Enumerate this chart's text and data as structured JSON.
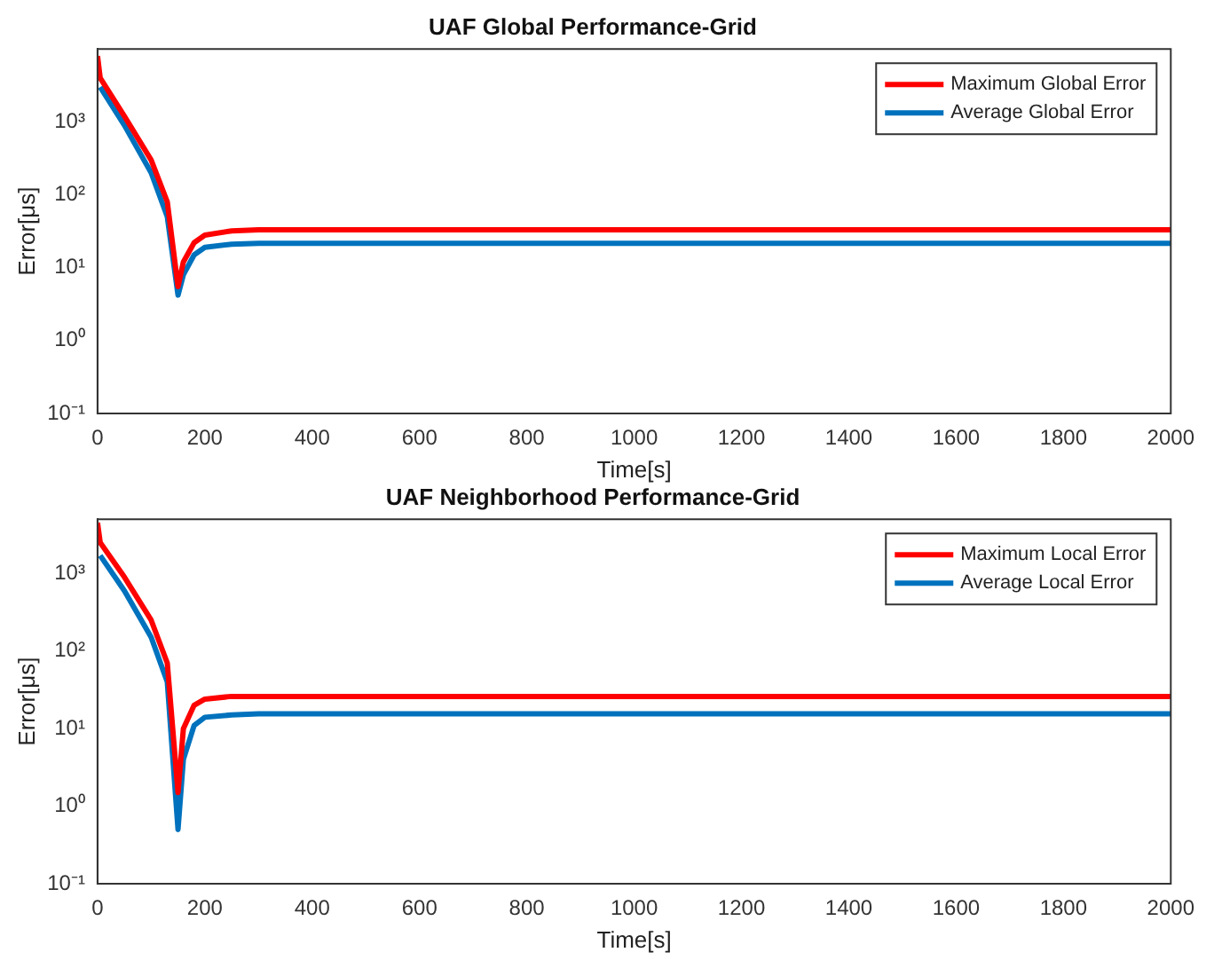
{
  "chart_data": [
    {
      "type": "line",
      "title": "UAF Global Performance-Grid",
      "xlabel": "Time[s]",
      "ylabel": "Error[μs]",
      "log": "y",
      "grid": false,
      "legend": "top right",
      "marker": "none",
      "line_style": "solid",
      "xlim": [
        0,
        2000
      ],
      "xticks": [
        0,
        200,
        400,
        600,
        800,
        1000,
        1200,
        1400,
        1600,
        1800,
        2000
      ],
      "ylim": [
        0.1,
        10000
      ],
      "yticks": [
        {
          "value": 0.1,
          "label": "10⁻¹"
        },
        {
          "value": 1,
          "label": "10⁰"
        },
        {
          "value": 10,
          "label": "10¹"
        },
        {
          "value": 100,
          "label": "10²"
        },
        {
          "value": 1000,
          "label": "10³"
        }
      ],
      "x": [
        0,
        5,
        50,
        100,
        130,
        150,
        160,
        180,
        200,
        250,
        300,
        2000
      ],
      "series": [
        {
          "name": "Maximum Global Error",
          "color": "#ff0000",
          "values": [
            8000,
            4000,
            1200,
            300,
            80,
            5.5,
            12,
            22,
            28,
            32,
            33,
            33
          ]
        },
        {
          "name": "Average Global Error",
          "color": "#0072bd",
          "values": [
            null,
            3000,
            900,
            200,
            50,
            4.2,
            8,
            15,
            19,
            21,
            21.5,
            21.5
          ]
        }
      ]
    },
    {
      "type": "line",
      "title": "UAF Neighborhood Performance-Grid",
      "xlabel": "Time[s]",
      "ylabel": "Error[μs]",
      "log": "y",
      "grid": false,
      "legend": "top right",
      "marker": "none",
      "line_style": "solid",
      "xlim": [
        0,
        2000
      ],
      "xticks": [
        0,
        200,
        400,
        600,
        800,
        1000,
        1200,
        1400,
        1600,
        1800,
        2000
      ],
      "ylim": [
        0.1,
        5000
      ],
      "yticks": [
        {
          "value": 0.1,
          "label": "10⁻¹"
        },
        {
          "value": 1,
          "label": "10⁰"
        },
        {
          "value": 10,
          "label": "10¹"
        },
        {
          "value": 100,
          "label": "10²"
        },
        {
          "value": 1000,
          "label": "10³"
        }
      ],
      "x": [
        0,
        5,
        50,
        100,
        130,
        150,
        160,
        180,
        200,
        250,
        300,
        2000
      ],
      "series": [
        {
          "name": "Maximum Local Error",
          "color": "#ff0000",
          "values": [
            4500,
            2500,
            900,
            250,
            70,
            1.5,
            10,
            20,
            24,
            26,
            26,
            26
          ]
        },
        {
          "name": "Average Local Error",
          "color": "#0072bd",
          "values": [
            null,
            1700,
            600,
            150,
            40,
            0.5,
            4,
            11,
            14,
            15,
            15.5,
            15.5
          ]
        }
      ]
    }
  ]
}
